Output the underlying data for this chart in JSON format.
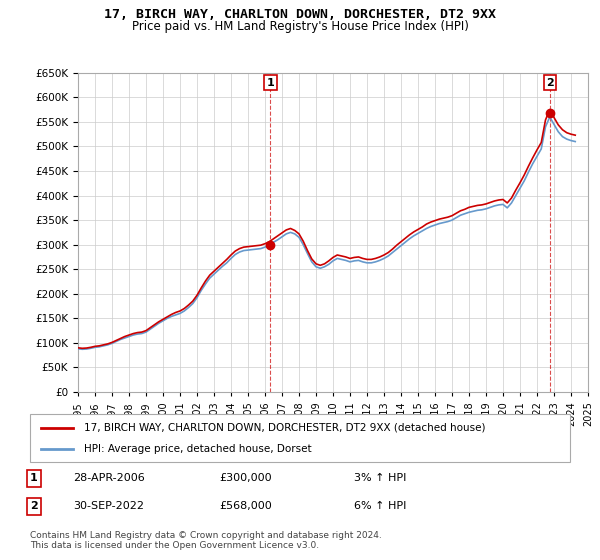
{
  "title": "17, BIRCH WAY, CHARLTON DOWN, DORCHESTER, DT2 9XX",
  "subtitle": "Price paid vs. HM Land Registry's House Price Index (HPI)",
  "ylabel_values": [
    "£0",
    "£50K",
    "£100K",
    "£150K",
    "£200K",
    "£250K",
    "£300K",
    "£350K",
    "£400K",
    "£450K",
    "£500K",
    "£550K",
    "£600K",
    "£650K"
  ],
  "ylim": [
    0,
    650000
  ],
  "yticks": [
    0,
    50000,
    100000,
    150000,
    200000,
    250000,
    300000,
    350000,
    400000,
    450000,
    500000,
    550000,
    600000,
    650000
  ],
  "x_start_year": 1995,
  "x_end_year": 2025,
  "hpi_color": "#6699cc",
  "price_color": "#cc0000",
  "background_color": "#ffffff",
  "grid_color": "#cccccc",
  "legend_label_price": "17, BIRCH WAY, CHARLTON DOWN, DORCHESTER, DT2 9XX (detached house)",
  "legend_label_hpi": "HPI: Average price, detached house, Dorset",
  "transaction1_label": "1",
  "transaction1_date": "28-APR-2006",
  "transaction1_price": "£300,000",
  "transaction1_hpi": "3% ↑ HPI",
  "transaction1_year": 2006.32,
  "transaction1_value": 300000,
  "transaction2_label": "2",
  "transaction2_date": "30-SEP-2022",
  "transaction2_price": "£568,000",
  "transaction2_hpi": "6% ↑ HPI",
  "transaction2_year": 2022.75,
  "transaction2_value": 568000,
  "footnote": "Contains HM Land Registry data © Crown copyright and database right 2024.\nThis data is licensed under the Open Government Licence v3.0.",
  "hpi_data": {
    "years": [
      1995.0,
      1995.25,
      1995.5,
      1995.75,
      1996.0,
      1996.25,
      1996.5,
      1996.75,
      1997.0,
      1997.25,
      1997.5,
      1997.75,
      1998.0,
      1998.25,
      1998.5,
      1998.75,
      1999.0,
      1999.25,
      1999.5,
      1999.75,
      2000.0,
      2000.25,
      2000.5,
      2000.75,
      2001.0,
      2001.25,
      2001.5,
      2001.75,
      2002.0,
      2002.25,
      2002.5,
      2002.75,
      2003.0,
      2003.25,
      2003.5,
      2003.75,
      2004.0,
      2004.25,
      2004.5,
      2004.75,
      2005.0,
      2005.25,
      2005.5,
      2005.75,
      2006.0,
      2006.25,
      2006.5,
      2006.75,
      2007.0,
      2007.25,
      2007.5,
      2007.75,
      2008.0,
      2008.25,
      2008.5,
      2008.75,
      2009.0,
      2009.25,
      2009.5,
      2009.75,
      2010.0,
      2010.25,
      2010.5,
      2010.75,
      2011.0,
      2011.25,
      2011.5,
      2011.75,
      2012.0,
      2012.25,
      2012.5,
      2012.75,
      2013.0,
      2013.25,
      2013.5,
      2013.75,
      2014.0,
      2014.25,
      2014.5,
      2014.75,
      2015.0,
      2015.25,
      2015.5,
      2015.75,
      2016.0,
      2016.25,
      2016.5,
      2016.75,
      2017.0,
      2017.25,
      2017.5,
      2017.75,
      2018.0,
      2018.25,
      2018.5,
      2018.75,
      2019.0,
      2019.25,
      2019.5,
      2019.75,
      2020.0,
      2020.25,
      2020.5,
      2020.75,
      2021.0,
      2021.25,
      2021.5,
      2021.75,
      2022.0,
      2022.25,
      2022.5,
      2022.75,
      2023.0,
      2023.25,
      2023.5,
      2023.75,
      2024.0,
      2024.25
    ],
    "values": [
      88000,
      87000,
      87500,
      89000,
      91000,
      92000,
      94000,
      96000,
      99000,
      103000,
      107000,
      110000,
      113000,
      116000,
      118000,
      119000,
      122000,
      128000,
      134000,
      140000,
      145000,
      150000,
      154000,
      157000,
      160000,
      165000,
      172000,
      180000,
      192000,
      207000,
      220000,
      232000,
      240000,
      248000,
      256000,
      263000,
      272000,
      280000,
      285000,
      288000,
      289000,
      290000,
      291000,
      292000,
      295000,
      299000,
      305000,
      310000,
      316000,
      322000,
      325000,
      322000,
      315000,
      300000,
      282000,
      265000,
      255000,
      252000,
      255000,
      260000,
      267000,
      272000,
      270000,
      268000,
      265000,
      267000,
      268000,
      265000,
      263000,
      263000,
      265000,
      268000,
      272000,
      277000,
      284000,
      291000,
      298000,
      305000,
      312000,
      318000,
      323000,
      328000,
      333000,
      337000,
      340000,
      343000,
      345000,
      347000,
      350000,
      355000,
      360000,
      363000,
      366000,
      368000,
      370000,
      371000,
      373000,
      376000,
      379000,
      381000,
      382000,
      375000,
      385000,
      400000,
      415000,
      430000,
      448000,
      465000,
      480000,
      495000,
      540000,
      560000,
      545000,
      530000,
      520000,
      515000,
      512000,
      510000
    ]
  },
  "price_data": {
    "years": [
      1995.0,
      1995.25,
      1995.5,
      1995.75,
      1996.0,
      1996.25,
      1996.5,
      1996.75,
      1997.0,
      1997.25,
      1997.5,
      1997.75,
      1998.0,
      1998.25,
      1998.5,
      1998.75,
      1999.0,
      1999.25,
      1999.5,
      1999.75,
      2000.0,
      2000.25,
      2000.5,
      2000.75,
      2001.0,
      2001.25,
      2001.5,
      2001.75,
      2002.0,
      2002.25,
      2002.5,
      2002.75,
      2003.0,
      2003.25,
      2003.5,
      2003.75,
      2004.0,
      2004.25,
      2004.5,
      2004.75,
      2005.0,
      2005.25,
      2005.5,
      2005.75,
      2006.0,
      2006.25,
      2006.5,
      2006.75,
      2007.0,
      2007.25,
      2007.5,
      2007.75,
      2008.0,
      2008.25,
      2008.5,
      2008.75,
      2009.0,
      2009.25,
      2009.5,
      2009.75,
      2010.0,
      2010.25,
      2010.5,
      2010.75,
      2011.0,
      2011.25,
      2011.5,
      2011.75,
      2012.0,
      2012.25,
      2012.5,
      2012.75,
      2013.0,
      2013.25,
      2013.5,
      2013.75,
      2014.0,
      2014.25,
      2014.5,
      2014.75,
      2015.0,
      2015.25,
      2015.5,
      2015.75,
      2016.0,
      2016.25,
      2016.5,
      2016.75,
      2017.0,
      2017.25,
      2017.5,
      2017.75,
      2018.0,
      2018.25,
      2018.5,
      2018.75,
      2019.0,
      2019.25,
      2019.5,
      2019.75,
      2020.0,
      2020.25,
      2020.5,
      2020.75,
      2021.0,
      2021.25,
      2021.5,
      2021.75,
      2022.0,
      2022.25,
      2022.5,
      2022.75,
      2023.0,
      2023.25,
      2023.5,
      2023.75,
      2024.0,
      2024.25
    ],
    "values": [
      90000,
      89000,
      89500,
      91000,
      93000,
      94000,
      96000,
      98000,
      101000,
      105000,
      109000,
      113000,
      116000,
      119000,
      121000,
      122000,
      125000,
      131000,
      137000,
      143000,
      148000,
      153000,
      158000,
      162000,
      165000,
      170000,
      177000,
      185000,
      197000,
      212000,
      226000,
      238000,
      246000,
      254000,
      262000,
      270000,
      279000,
      287000,
      292000,
      295000,
      296000,
      297000,
      298000,
      299000,
      302000,
      306000,
      312000,
      318000,
      324000,
      330000,
      333000,
      329000,
      322000,
      307000,
      288000,
      271000,
      261000,
      258000,
      261000,
      267000,
      274000,
      279000,
      277000,
      275000,
      272000,
      274000,
      275000,
      272000,
      270000,
      270000,
      272000,
      275000,
      279000,
      284000,
      291000,
      299000,
      306000,
      313000,
      320000,
      326000,
      331000,
      336000,
      342000,
      346000,
      349000,
      352000,
      354000,
      356000,
      359000,
      364000,
      369000,
      372000,
      376000,
      378000,
      380000,
      381000,
      383000,
      386000,
      389000,
      391000,
      392000,
      385000,
      395000,
      411000,
      426000,
      442000,
      460000,
      477000,
      493000,
      508000,
      554000,
      575000,
      559000,
      544000,
      534000,
      528000,
      525000,
      523000
    ]
  }
}
